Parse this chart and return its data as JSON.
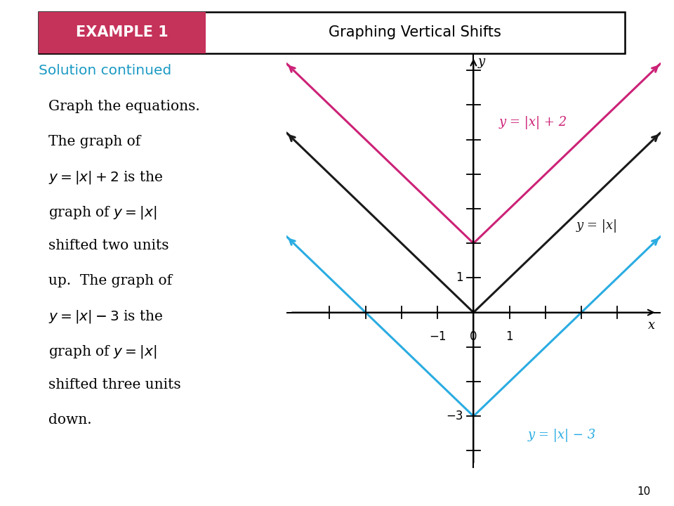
{
  "title_box_text": "EXAMPLE 1",
  "title_box_color": "#C5325A",
  "title_text": "Graphing Vertical Shifts",
  "solution_text": "Solution continued",
  "solution_color": "#1B9AC4",
  "page_bg": "#ffffff",
  "axis_color": "#000000",
  "curve_abs_color": "#1a1a1a",
  "curve_plus2_color": "#CC2277",
  "curve_minus3_color": "#2AACE2",
  "label_abs": "y = |x|",
  "label_plus2": "y = |x| + 2",
  "label_minus3": "y = |x| − 3",
  "xmin": -5.2,
  "xmax": 5.2,
  "ymin": -4.5,
  "ymax": 7.5,
  "page_number": "10"
}
